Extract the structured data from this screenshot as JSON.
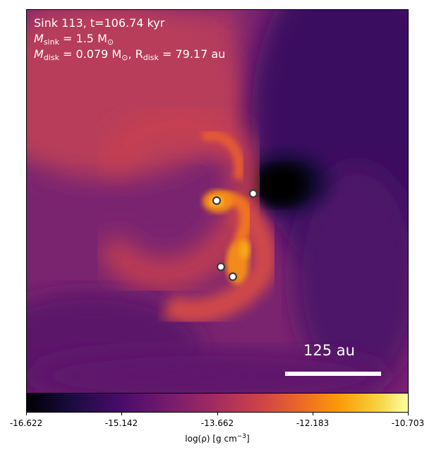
{
  "annotation": {
    "line1": "Sink 113, t=106.74 kyr",
    "line2_prefix": "M",
    "line2_sub": "sink",
    "line2_rest": " = 1.5 M",
    "line2_sun": "⊙",
    "line3_prefix": "M",
    "line3_sub": "disk",
    "line3_mid": " = 0.079 M",
    "line3_sun": "⊙",
    "line3_r": ", R",
    "line3_rsub": "disk",
    "line3_rest": " = 79.17 au"
  },
  "scale_bar": {
    "label": "125 au"
  },
  "colorbar": {
    "label": "log(ρ) [g cm",
    "label_exp": "−3",
    "label_end": "]",
    "ticks": [
      "-16.622",
      "-15.142",
      "-13.662",
      "-12.183",
      "-10.703"
    ],
    "colormap": "inferno"
  },
  "sinks": [
    {
      "name": "sink-a"
    },
    {
      "name": "sink-b"
    },
    {
      "name": "sink-c"
    },
    {
      "name": "sink-d"
    }
  ]
}
